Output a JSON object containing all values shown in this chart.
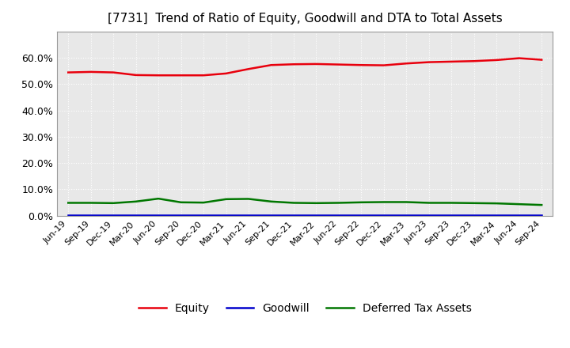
{
  "title": "[7731]  Trend of Ratio of Equity, Goodwill and DTA to Total Assets",
  "x_labels": [
    "Jun-19",
    "Sep-19",
    "Dec-19",
    "Mar-20",
    "Jun-20",
    "Sep-20",
    "Dec-20",
    "Mar-21",
    "Jun-21",
    "Sep-21",
    "Dec-21",
    "Mar-22",
    "Jun-22",
    "Sep-22",
    "Dec-22",
    "Mar-23",
    "Jun-23",
    "Sep-23",
    "Dec-23",
    "Mar-24",
    "Jun-24",
    "Sep-24"
  ],
  "equity": [
    0.544,
    0.546,
    0.544,
    0.534,
    0.533,
    0.533,
    0.533,
    0.54,
    0.557,
    0.572,
    0.575,
    0.576,
    0.574,
    0.572,
    0.571,
    0.578,
    0.583,
    0.585,
    0.587,
    0.591,
    0.598,
    0.592
  ],
  "goodwill": [
    0.001,
    0.001,
    0.001,
    0.001,
    0.001,
    0.001,
    0.001,
    0.001,
    0.001,
    0.001,
    0.001,
    0.001,
    0.001,
    0.001,
    0.001,
    0.001,
    0.001,
    0.001,
    0.001,
    0.001,
    0.001,
    0.001
  ],
  "dta": [
    0.049,
    0.049,
    0.048,
    0.054,
    0.065,
    0.051,
    0.05,
    0.063,
    0.064,
    0.054,
    0.049,
    0.048,
    0.049,
    0.051,
    0.052,
    0.052,
    0.049,
    0.049,
    0.048,
    0.047,
    0.044,
    0.041
  ],
  "equity_color": "#e8000d",
  "goodwill_color": "#0000cc",
  "dta_color": "#007700",
  "ylim": [
    0.0,
    0.7
  ],
  "yticks": [
    0.0,
    0.1,
    0.2,
    0.3,
    0.4,
    0.5,
    0.6
  ],
  "plot_bg_color": "#e8e8e8",
  "figure_bg_color": "#ffffff",
  "grid_color": "#ffffff",
  "title_fontsize": 11,
  "legend_labels": [
    "Equity",
    "Goodwill",
    "Deferred Tax Assets"
  ]
}
